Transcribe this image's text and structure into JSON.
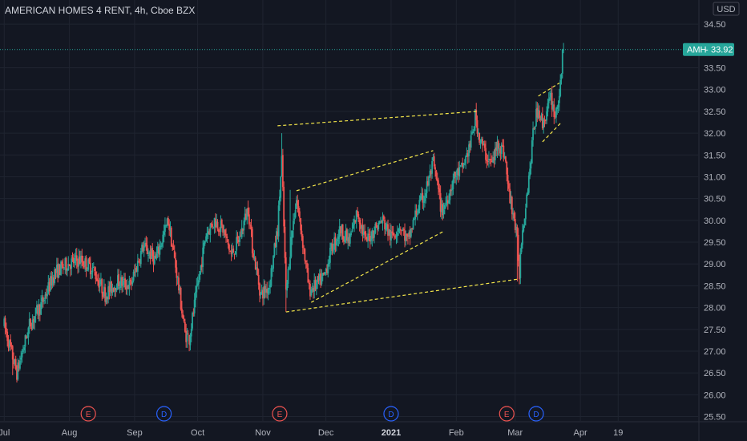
{
  "header": {
    "title": "AMERICAN HOMES 4 RENT, 4h, Cboe BZX",
    "currency": "USD"
  },
  "price_tag": {
    "symbol": "AMH",
    "separator": "-",
    "value": "33.92"
  },
  "colors": {
    "background": "#131722",
    "grid": "#1f2430",
    "up": "#26a69a",
    "down": "#ef5350",
    "pattern": "#f5e74a",
    "earnings": "#ef5350",
    "dividend": "#2962ff",
    "price_tag": "#26a69a"
  },
  "chart_data": {
    "type": "candlestick",
    "y_ticks": [
      "25.50",
      "26.00",
      "26.50",
      "27.00",
      "27.50",
      "28.00",
      "28.50",
      "29.00",
      "29.50",
      "30.00",
      "30.50",
      "31.00",
      "31.50",
      "32.00",
      "32.50",
      "33.00",
      "33.50",
      "34.50"
    ],
    "ylim": [
      25.4,
      34.65
    ],
    "x_ticks": [
      {
        "label": "Jul",
        "x": 0
      },
      {
        "label": "Aug",
        "x": 31
      },
      {
        "label": "Sep",
        "x": 62
      },
      {
        "label": "Oct",
        "x": 92
      },
      {
        "label": "Nov",
        "x": 123
      },
      {
        "label": "Dec",
        "x": 153
      },
      {
        "label": "2021",
        "x": 184,
        "bold": true
      },
      {
        "label": "Feb",
        "x": 215
      },
      {
        "label": "Mar",
        "x": 243
      },
      {
        "label": "Apr",
        "x": 274
      },
      {
        "label": "19",
        "x": 292
      }
    ],
    "xlim": [
      -2,
      330
    ],
    "last_price": 33.92,
    "events": [
      {
        "type": "E",
        "x": 40
      },
      {
        "type": "D",
        "x": 76
      },
      {
        "type": "E",
        "x": 131
      },
      {
        "type": "D",
        "x": 184
      },
      {
        "type": "E",
        "x": 239
      },
      {
        "type": "D",
        "x": 253
      }
    ],
    "pattern_lines": [
      {
        "from": [
          130,
          32.17
        ],
        "to": [
          225,
          32.5
        ]
      },
      {
        "from": [
          134,
          27.9
        ],
        "to": [
          244,
          28.65
        ]
      },
      {
        "from": [
          139,
          30.68
        ],
        "to": [
          204,
          31.6
        ]
      },
      {
        "from": [
          146,
          28.12
        ],
        "to": [
          209,
          29.75
        ]
      },
      {
        "from": [
          254,
          32.85
        ],
        "to": [
          264,
          33.15
        ]
      },
      {
        "from": [
          256,
          31.8
        ],
        "to": [
          265,
          32.25
        ]
      }
    ],
    "price_path": [
      [
        0,
        27.6
      ],
      [
        6,
        26.5
      ],
      [
        12,
        27.6
      ],
      [
        18,
        28.1
      ],
      [
        24,
        28.8
      ],
      [
        30,
        29.0
      ],
      [
        36,
        29.1
      ],
      [
        42,
        28.9
      ],
      [
        48,
        28.3
      ],
      [
        54,
        28.6
      ],
      [
        60,
        28.5
      ],
      [
        66,
        29.4
      ],
      [
        72,
        29.1
      ],
      [
        78,
        30.0
      ],
      [
        82,
        28.8
      ],
      [
        86,
        27.4
      ],
      [
        88,
        27.3
      ],
      [
        92,
        28.5
      ],
      [
        96,
        29.7
      ],
      [
        100,
        30.0
      ],
      [
        104,
        29.8
      ],
      [
        108,
        29.2
      ],
      [
        112,
        29.6
      ],
      [
        116,
        30.3
      ],
      [
        118,
        29.4
      ],
      [
        122,
        28.3
      ],
      [
        126,
        28.5
      ],
      [
        130,
        29.8
      ],
      [
        132,
        31.4
      ],
      [
        134,
        28.3
      ],
      [
        137,
        29.8
      ],
      [
        139,
        30.5
      ],
      [
        142,
        29.5
      ],
      [
        145,
        28.4
      ],
      [
        148,
        28.5
      ],
      [
        152,
        28.7
      ],
      [
        156,
        29.4
      ],
      [
        160,
        29.8
      ],
      [
        164,
        29.5
      ],
      [
        168,
        30.2
      ],
      [
        172,
        29.5
      ],
      [
        176,
        29.8
      ],
      [
        180,
        30.0
      ],
      [
        184,
        29.6
      ],
      [
        188,
        29.9
      ],
      [
        192,
        29.5
      ],
      [
        196,
        30.2
      ],
      [
        200,
        30.6
      ],
      [
        204,
        31.3
      ],
      [
        206,
        30.8
      ],
      [
        208,
        30.2
      ],
      [
        210,
        30.4
      ],
      [
        214,
        31.0
      ],
      [
        218,
        31.2
      ],
      [
        222,
        31.8
      ],
      [
        224,
        32.4
      ],
      [
        226,
        31.9
      ],
      [
        229,
        31.5
      ],
      [
        232,
        31.3
      ],
      [
        235,
        31.8
      ],
      [
        238,
        31.5
      ],
      [
        240,
        30.6
      ],
      [
        242,
        30.2
      ],
      [
        244,
        29.5
      ],
      [
        245,
        28.8
      ],
      [
        246,
        29.6
      ],
      [
        248,
        30.4
      ],
      [
        250,
        31.2
      ],
      [
        252,
        32.2
      ],
      [
        254,
        32.6
      ],
      [
        256,
        32.2
      ],
      [
        258,
        32.5
      ],
      [
        260,
        32.8
      ],
      [
        262,
        32.4
      ],
      [
        264,
        32.9
      ],
      [
        265,
        33.2
      ],
      [
        266,
        33.92
      ]
    ],
    "spikes": [
      {
        "x": 132,
        "high": 32.0
      },
      {
        "x": 136,
        "high": 30.7
      },
      {
        "x": 134,
        "low": 27.9
      },
      {
        "x": 244,
        "low": 28.6
      },
      {
        "x": 224,
        "high": 32.5
      },
      {
        "x": 88,
        "low": 27.0
      },
      {
        "x": 4,
        "low": 26.45
      }
    ]
  }
}
